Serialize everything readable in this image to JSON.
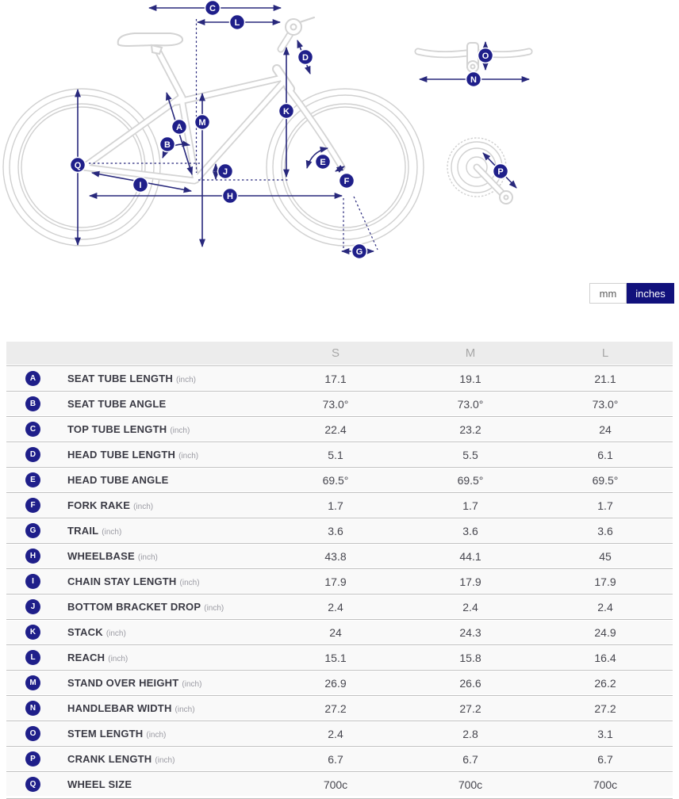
{
  "colors": {
    "accent_navy": "#1f1f8a",
    "dimension_line_navy": "#28287c",
    "toggle_active_bg": "#11117c",
    "diagram_outline_gray": "#d3d3d3",
    "table_header_bg": "#ececec",
    "table_row_bg": "#f9f9f9"
  },
  "unit_toggle": {
    "mm_label": "mm",
    "inches_label": "inches",
    "selected": "inches"
  },
  "diagram": {
    "markers": [
      "A",
      "B",
      "C",
      "D",
      "E",
      "F",
      "G",
      "H",
      "I",
      "J",
      "K",
      "L",
      "M",
      "N",
      "O",
      "P",
      "Q"
    ]
  },
  "table": {
    "columns": [
      "S",
      "M",
      "L"
    ],
    "rows": [
      {
        "letter": "A",
        "label": "SEAT TUBE LENGTH",
        "unit": "(inch)",
        "values": [
          "17.1",
          "19.1",
          "21.1"
        ]
      },
      {
        "letter": "B",
        "label": "SEAT TUBE ANGLE",
        "unit": "",
        "values": [
          "73.0°",
          "73.0°",
          "73.0°"
        ]
      },
      {
        "letter": "C",
        "label": "TOP TUBE LENGTH",
        "unit": "(inch)",
        "values": [
          "22.4",
          "23.2",
          "24"
        ]
      },
      {
        "letter": "D",
        "label": "HEAD TUBE LENGTH",
        "unit": "(inch)",
        "values": [
          "5.1",
          "5.5",
          "6.1"
        ]
      },
      {
        "letter": "E",
        "label": "HEAD TUBE ANGLE",
        "unit": "",
        "values": [
          "69.5°",
          "69.5°",
          "69.5°"
        ]
      },
      {
        "letter": "F",
        "label": "FORK RAKE",
        "unit": "(inch)",
        "values": [
          "1.7",
          "1.7",
          "1.7"
        ]
      },
      {
        "letter": "G",
        "label": "TRAIL",
        "unit": "(inch)",
        "values": [
          "3.6",
          "3.6",
          "3.6"
        ]
      },
      {
        "letter": "H",
        "label": "WHEELBASE",
        "unit": "(inch)",
        "values": [
          "43.8",
          "44.1",
          "45"
        ]
      },
      {
        "letter": "I",
        "label": "CHAIN STAY LENGTH",
        "unit": "(inch)",
        "values": [
          "17.9",
          "17.9",
          "17.9"
        ]
      },
      {
        "letter": "J",
        "label": "BOTTOM BRACKET DROP",
        "unit": "(inch)",
        "values": [
          "2.4",
          "2.4",
          "2.4"
        ]
      },
      {
        "letter": "K",
        "label": "STACK",
        "unit": "(inch)",
        "values": [
          "24",
          "24.3",
          "24.9"
        ]
      },
      {
        "letter": "L",
        "label": "REACH",
        "unit": "(inch)",
        "values": [
          "15.1",
          "15.8",
          "16.4"
        ]
      },
      {
        "letter": "M",
        "label": "STAND OVER HEIGHT",
        "unit": "(inch)",
        "values": [
          "26.9",
          "26.6",
          "26.2"
        ]
      },
      {
        "letter": "N",
        "label": "HANDLEBAR WIDTH",
        "unit": "(inch)",
        "values": [
          "27.2",
          "27.2",
          "27.2"
        ]
      },
      {
        "letter": "O",
        "label": "STEM LENGTH",
        "unit": "(inch)",
        "values": [
          "2.4",
          "2.8",
          "3.1"
        ]
      },
      {
        "letter": "P",
        "label": "CRANK LENGTH",
        "unit": "(inch)",
        "values": [
          "6.7",
          "6.7",
          "6.7"
        ]
      },
      {
        "letter": "Q",
        "label": "WHEEL SIZE",
        "unit": "",
        "values": [
          "700c",
          "700c",
          "700c"
        ]
      }
    ]
  }
}
